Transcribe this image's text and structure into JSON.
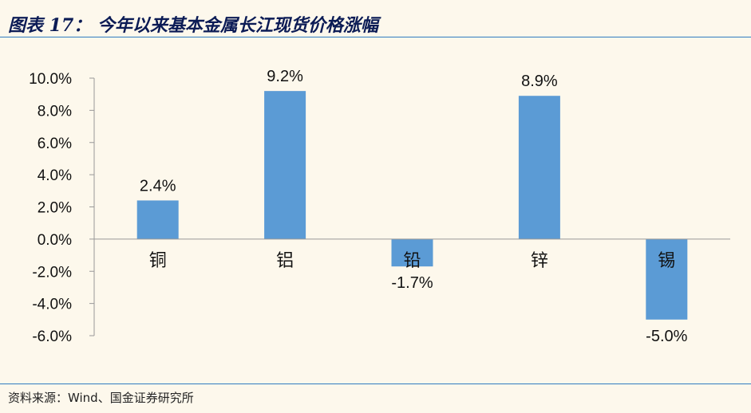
{
  "figure": {
    "title": "图表 17：  今年以来基本金属长江现货价格涨幅",
    "source": "资料来源：Wind、国金证券研究所"
  },
  "colors": {
    "bar": "#5b9bd5",
    "background": "#fdf8ec",
    "title": "#0b1b55",
    "rule": "#2f7cc0",
    "axis": "#999999"
  },
  "chart_data": {
    "type": "bar",
    "categories": [
      "铜",
      "铝",
      "铅",
      "锌",
      "锡"
    ],
    "values": [
      2.4,
      9.2,
      -1.7,
      8.9,
      -5.0
    ],
    "value_labels": [
      "2.4%",
      "9.2%",
      "-1.7%",
      "8.9%",
      "-5.0%"
    ],
    "y_ticks": [
      "10.0%",
      "8.0%",
      "6.0%",
      "4.0%",
      "2.0%",
      "0.0%",
      "-2.0%",
      "-4.0%",
      "-6.0%"
    ],
    "ylim": [
      -6,
      10
    ],
    "grid": false,
    "legend": "none"
  }
}
